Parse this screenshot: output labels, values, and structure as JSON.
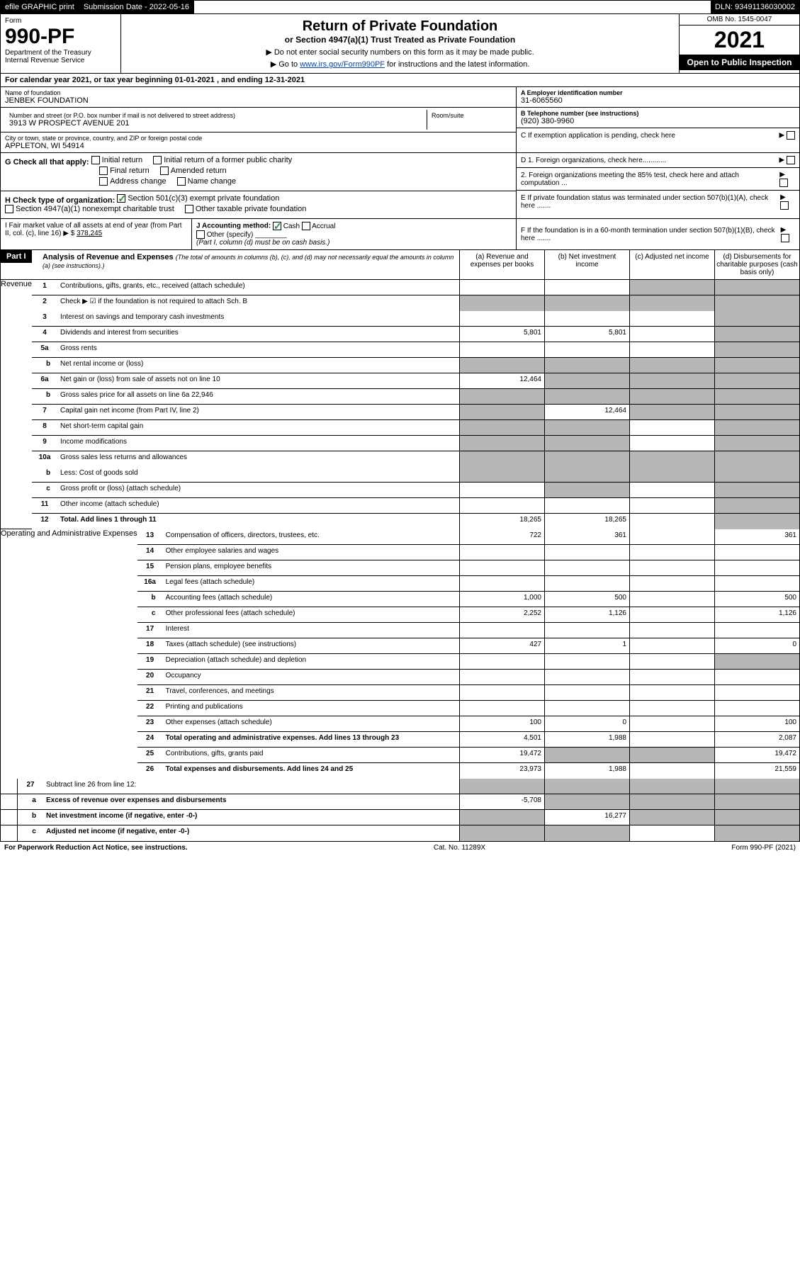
{
  "topbar": {
    "efile": "efile GRAPHIC print",
    "submission_label": "Submission Date - 2022-05-16",
    "dln_label": "DLN: 93491136030002"
  },
  "header": {
    "form_word": "Form",
    "form_number": "990-PF",
    "dept1": "Department of the Treasury",
    "dept2": "Internal Revenue Service",
    "title1": "Return of Private Foundation",
    "title2": "or Section 4947(a)(1) Trust Treated as Private Foundation",
    "sub1": "▶ Do not enter social security numbers on this form as it may be made public.",
    "sub2_pre": "▶ Go to ",
    "sub2_link": "www.irs.gov/Form990PF",
    "sub2_post": " for instructions and the latest information.",
    "omb": "OMB No. 1545-0047",
    "year": "2021",
    "open": "Open to Public Inspection"
  },
  "calendar": "For calendar year 2021, or tax year beginning 01-01-2021          , and ending 12-31-2021",
  "info": {
    "name_label": "Name of foundation",
    "name_val": "JENBEK FOUNDATION",
    "addr_label": "Number and street (or P.O. box number if mail is not delivered to street address)",
    "addr_val": "3913 W PROSPECT AVENUE 201",
    "room_label": "Room/suite",
    "city_label": "City or town, state or province, country, and ZIP or foreign postal code",
    "city_val": "APPLETON, WI  54914",
    "ein_label": "A Employer identification number",
    "ein_val": "31-6065560",
    "tel_label": "B Telephone number (see instructions)",
    "tel_val": "(920) 380-9960",
    "c_label": "C If exemption application is pending, check here",
    "d1": "D 1. Foreign organizations, check here............",
    "d2": "2. Foreign organizations meeting the 85% test, check here and attach computation ...",
    "e_label": "E If private foundation status was terminated under section 507(b)(1)(A), check here .......",
    "f_label": "F If the foundation is in a 60-month termination under section 507(b)(1)(B), check here ......."
  },
  "checks": {
    "g_label": "G Check all that apply:",
    "initial": "Initial return",
    "initial_former": "Initial return of a former public charity",
    "final": "Final return",
    "amended": "Amended return",
    "addr_change": "Address change",
    "name_change": "Name change",
    "h_label": "H Check type of organization:",
    "h1": "Section 501(c)(3) exempt private foundation",
    "h2": "Section 4947(a)(1) nonexempt charitable trust",
    "h3": "Other taxable private foundation",
    "i_label": "I Fair market value of all assets at end of year (from Part II, col. (c), line 16) ▶ $",
    "i_val": "378,245",
    "j_label": "J Accounting method:",
    "j_cash": "Cash",
    "j_accrual": "Accrual",
    "j_other": "Other (specify)",
    "j_note": "(Part I, column (d) must be on cash basis.)"
  },
  "part1": {
    "tag": "Part I",
    "title": "Analysis of Revenue and Expenses",
    "title_note": "(The total of amounts in columns (b), (c), and (d) may not necessarily equal the amounts in column (a) (see instructions).)",
    "col_a": "(a) Revenue and expenses per books",
    "col_b": "(b) Net investment income",
    "col_c": "(c) Adjusted net income",
    "col_d": "(d) Disbursements for charitable purposes (cash basis only)"
  },
  "sections": {
    "revenue": "Revenue",
    "expenses": "Operating and Administrative Expenses"
  },
  "rows": [
    {
      "n": "1",
      "t": "Contributions, gifts, grants, etc., received (attach schedule)",
      "a": "",
      "b": "",
      "c": "s",
      "d": "s"
    },
    {
      "n": "2",
      "t": "Check ▶ ☑ if the foundation is not required to attach Sch. B",
      "a": "s",
      "b": "s",
      "c": "s",
      "d": "s",
      "nob": true
    },
    {
      "n": "3",
      "t": "Interest on savings and temporary cash investments",
      "a": "",
      "b": "",
      "c": "",
      "d": "s"
    },
    {
      "n": "4",
      "t": "Dividends and interest from securities",
      "a": "5,801",
      "b": "5,801",
      "c": "",
      "d": "s"
    },
    {
      "n": "5a",
      "t": "Gross rents",
      "a": "",
      "b": "",
      "c": "",
      "d": "s"
    },
    {
      "n": "b",
      "t": "Net rental income or (loss)",
      "a": "s",
      "b": "s",
      "c": "s",
      "d": "s",
      "indent": true
    },
    {
      "n": "6a",
      "t": "Net gain or (loss) from sale of assets not on line 10",
      "a": "12,464",
      "b": "s",
      "c": "s",
      "d": "s"
    },
    {
      "n": "b",
      "t": "Gross sales price for all assets on line 6a            22,946",
      "a": "s",
      "b": "s",
      "c": "s",
      "d": "s",
      "indent": true
    },
    {
      "n": "7",
      "t": "Capital gain net income (from Part IV, line 2)",
      "a": "s",
      "b": "12,464",
      "c": "s",
      "d": "s"
    },
    {
      "n": "8",
      "t": "Net short-term capital gain",
      "a": "s",
      "b": "s",
      "c": "",
      "d": "s"
    },
    {
      "n": "9",
      "t": "Income modifications",
      "a": "s",
      "b": "s",
      "c": "",
      "d": "s"
    },
    {
      "n": "10a",
      "t": "Gross sales less returns and allowances",
      "a": "s",
      "b": "s",
      "c": "s",
      "d": "s",
      "nob": true
    },
    {
      "n": "b",
      "t": "Less: Cost of goods sold",
      "a": "s",
      "b": "s",
      "c": "s",
      "d": "s",
      "indent": true
    },
    {
      "n": "c",
      "t": "Gross profit or (loss) (attach schedule)",
      "a": "",
      "b": "s",
      "c": "",
      "d": "s",
      "indent": true
    },
    {
      "n": "11",
      "t": "Other income (attach schedule)",
      "a": "",
      "b": "",
      "c": "",
      "d": "s"
    },
    {
      "n": "12",
      "t": "Total. Add lines 1 through 11",
      "a": "18,265",
      "b": "18,265",
      "c": "",
      "d": "s",
      "bold": true
    }
  ],
  "erows": [
    {
      "n": "13",
      "t": "Compensation of officers, directors, trustees, etc.",
      "a": "722",
      "b": "361",
      "c": "",
      "d": "361"
    },
    {
      "n": "14",
      "t": "Other employee salaries and wages",
      "a": "",
      "b": "",
      "c": "",
      "d": ""
    },
    {
      "n": "15",
      "t": "Pension plans, employee benefits",
      "a": "",
      "b": "",
      "c": "",
      "d": ""
    },
    {
      "n": "16a",
      "t": "Legal fees (attach schedule)",
      "a": "",
      "b": "",
      "c": "",
      "d": ""
    },
    {
      "n": "b",
      "t": "Accounting fees (attach schedule)",
      "a": "1,000",
      "b": "500",
      "c": "",
      "d": "500",
      "indent": true
    },
    {
      "n": "c",
      "t": "Other professional fees (attach schedule)",
      "a": "2,252",
      "b": "1,126",
      "c": "",
      "d": "1,126",
      "indent": true
    },
    {
      "n": "17",
      "t": "Interest",
      "a": "",
      "b": "",
      "c": "",
      "d": ""
    },
    {
      "n": "18",
      "t": "Taxes (attach schedule) (see instructions)",
      "a": "427",
      "b": "1",
      "c": "",
      "d": "0"
    },
    {
      "n": "19",
      "t": "Depreciation (attach schedule) and depletion",
      "a": "",
      "b": "",
      "c": "",
      "d": "s"
    },
    {
      "n": "20",
      "t": "Occupancy",
      "a": "",
      "b": "",
      "c": "",
      "d": ""
    },
    {
      "n": "21",
      "t": "Travel, conferences, and meetings",
      "a": "",
      "b": "",
      "c": "",
      "d": ""
    },
    {
      "n": "22",
      "t": "Printing and publications",
      "a": "",
      "b": "",
      "c": "",
      "d": ""
    },
    {
      "n": "23",
      "t": "Other expenses (attach schedule)",
      "a": "100",
      "b": "0",
      "c": "",
      "d": "100"
    },
    {
      "n": "24",
      "t": "Total operating and administrative expenses. Add lines 13 through 23",
      "a": "4,501",
      "b": "1,988",
      "c": "",
      "d": "2,087",
      "bold": true
    },
    {
      "n": "25",
      "t": "Contributions, gifts, grants paid",
      "a": "19,472",
      "b": "s",
      "c": "s",
      "d": "19,472"
    },
    {
      "n": "26",
      "t": "Total expenses and disbursements. Add lines 24 and 25",
      "a": "23,973",
      "b": "1,988",
      "c": "",
      "d": "21,559",
      "bold": true
    }
  ],
  "frows": [
    {
      "n": "27",
      "t": "Subtract line 26 from line 12:",
      "a": "s",
      "b": "s",
      "c": "s",
      "d": "s"
    },
    {
      "n": "a",
      "t": "Excess of revenue over expenses and disbursements",
      "a": "-5,708",
      "b": "s",
      "c": "s",
      "d": "s",
      "bold": true,
      "indent": true
    },
    {
      "n": "b",
      "t": "Net investment income (if negative, enter -0-)",
      "a": "s",
      "b": "16,277",
      "c": "s",
      "d": "s",
      "bold": true,
      "indent": true
    },
    {
      "n": "c",
      "t": "Adjusted net income (if negative, enter -0-)",
      "a": "s",
      "b": "s",
      "c": "",
      "d": "s",
      "bold": true,
      "indent": true
    }
  ],
  "footer": {
    "left": "For Paperwork Reduction Act Notice, see instructions.",
    "mid": "Cat. No. 11289X",
    "right": "Form 990-PF (2021)"
  }
}
